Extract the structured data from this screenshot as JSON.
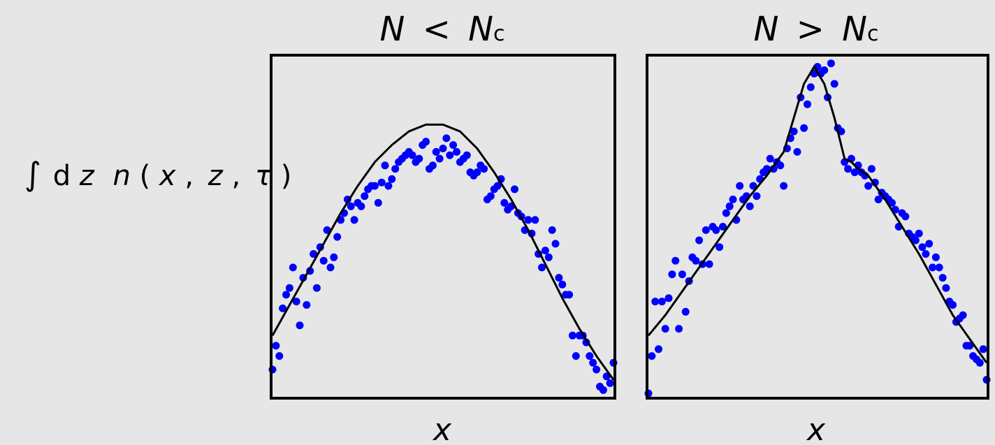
{
  "ylabel": {
    "integral": "∫",
    "d": "d",
    "z_var": "z",
    "n": "n",
    "open_paren": "(",
    "x": "x",
    "comma1": ",",
    "z": "z",
    "comma2": ",",
    "tau": "τ",
    "close_paren": ")"
  },
  "colors": {
    "points": "#0000ff",
    "curve": "#000000",
    "frame": "#000000",
    "background": "#e6e6e6"
  },
  "chart_data": [
    {
      "type": "scatter",
      "title": {
        "N": "N",
        "relation": "<",
        "Nc": "N",
        "Nc_sub": "c"
      },
      "xlabel": "x",
      "xlim": [
        0,
        100
      ],
      "ylim": [
        0,
        100
      ],
      "grid": false,
      "curve": {
        "x": [
          0,
          5,
          10,
          15,
          20,
          25,
          30,
          35,
          40,
          45,
          50,
          55,
          60,
          65,
          70,
          75,
          80,
          85,
          90,
          95,
          100
        ],
        "y": [
          18,
          27,
          36,
          45,
          54,
          62,
          69,
          74,
          78,
          80,
          80,
          78,
          73,
          66,
          58,
          49,
          39,
          29,
          20,
          12,
          5
        ]
      },
      "points": {
        "x": [
          0,
          1,
          2,
          3,
          4,
          5,
          6,
          7,
          8,
          9,
          10,
          11,
          12,
          13,
          14,
          15,
          16,
          17,
          18,
          19,
          20,
          21,
          22,
          23,
          24,
          25,
          26,
          27,
          28,
          29,
          30,
          31,
          32,
          33,
          34,
          35,
          36,
          37,
          38,
          39,
          40,
          41,
          42,
          43,
          44,
          45,
          46,
          47,
          48,
          49,
          50,
          51,
          52,
          53,
          54,
          55,
          56,
          57,
          58,
          59,
          60,
          61,
          62,
          63,
          64,
          65,
          66,
          67,
          68,
          69,
          70,
          71,
          72,
          73,
          74,
          75,
          76,
          77,
          78,
          79,
          80,
          81,
          82,
          83,
          84,
          85,
          86,
          87,
          88,
          89,
          90,
          91,
          92,
          93,
          94,
          95,
          96,
          97,
          98,
          99,
          100
        ],
        "y": [
          8,
          15,
          12,
          26,
          30,
          32,
          38,
          28,
          21,
          35,
          27,
          37,
          42,
          32,
          44,
          40,
          49,
          38,
          41,
          47,
          52,
          54,
          58,
          56,
          52,
          57,
          56,
          59,
          61,
          62,
          62,
          57,
          63,
          68,
          62,
          64,
          67,
          69,
          70,
          71,
          72,
          71,
          69,
          70,
          74,
          75,
          67,
          68,
          72,
          70,
          73,
          76,
          71,
          74,
          72,
          69,
          70,
          71,
          66,
          65,
          66,
          68,
          67,
          58,
          59,
          61,
          62,
          64,
          57,
          55,
          56,
          61,
          54,
          53,
          49,
          52,
          48,
          52,
          42,
          38,
          43,
          41,
          49,
          45,
          35,
          33,
          30,
          30,
          18,
          12,
          18,
          18,
          16,
          12,
          10,
          8,
          3,
          2,
          6,
          4,
          10
        ]
      }
    },
    {
      "type": "scatter",
      "title": {
        "N": "N",
        "relation": ">",
        "Nc": "N",
        "Nc_sub": "c"
      },
      "xlabel": "x",
      "xlim": [
        0,
        100
      ],
      "ylim": [
        0,
        100
      ],
      "grid": false,
      "curve": {
        "x": [
          0,
          5,
          10,
          15,
          20,
          25,
          30,
          35,
          40,
          43,
          46,
          49,
          52,
          55,
          58,
          60,
          62,
          65,
          70,
          75,
          80,
          85,
          90,
          95,
          100
        ],
        "y": [
          18,
          24,
          31,
          38,
          45,
          52,
          59,
          65,
          72,
          82,
          92,
          97,
          92,
          82,
          70,
          69,
          67,
          65,
          58,
          50,
          42,
          33,
          24,
          17,
          10
        ]
      },
      "points": {
        "x": [
          0,
          1,
          2,
          3,
          4,
          5,
          6,
          7,
          8,
          9,
          10,
          11,
          12,
          13,
          14,
          15,
          16,
          17,
          18,
          19,
          20,
          21,
          22,
          23,
          24,
          25,
          26,
          27,
          28,
          29,
          30,
          31,
          32,
          33,
          34,
          35,
          36,
          37,
          38,
          39,
          40,
          41,
          42,
          43,
          44,
          45,
          46,
          47,
          48,
          49,
          50,
          51,
          52,
          53,
          54,
          55,
          56,
          57,
          58,
          59,
          60,
          61,
          62,
          63,
          64,
          65,
          66,
          67,
          68,
          69,
          70,
          71,
          72,
          73,
          74,
          75,
          76,
          77,
          78,
          79,
          80,
          81,
          82,
          83,
          84,
          85,
          86,
          87,
          88,
          89,
          90,
          91,
          92,
          93,
          94,
          95,
          96,
          97,
          98,
          99,
          100
        ],
        "y": [
          1,
          12,
          28,
          14,
          28,
          20,
          29,
          36,
          40,
          20,
          36,
          25,
          34,
          41,
          40,
          46,
          39,
          49,
          39,
          50,
          49,
          44,
          50,
          54,
          56,
          58,
          52,
          62,
          58,
          59,
          56,
          62,
          59,
          64,
          66,
          67,
          70,
          67,
          69,
          68,
          62,
          73,
          76,
          78,
          72,
          88,
          79,
          86,
          91,
          95,
          97,
          95,
          96,
          88,
          98,
          92,
          79,
          78,
          69,
          67,
          70,
          66,
          68,
          66,
          65,
          62,
          67,
          63,
          58,
          60,
          59,
          58,
          57,
          55,
          50,
          54,
          53,
          48,
          47,
          46,
          48,
          44,
          42,
          45,
          38,
          41,
          38,
          35,
          32,
          28,
          27,
          22,
          23,
          24,
          15,
          15,
          12,
          11,
          10,
          14,
          5
        ]
      }
    }
  ]
}
